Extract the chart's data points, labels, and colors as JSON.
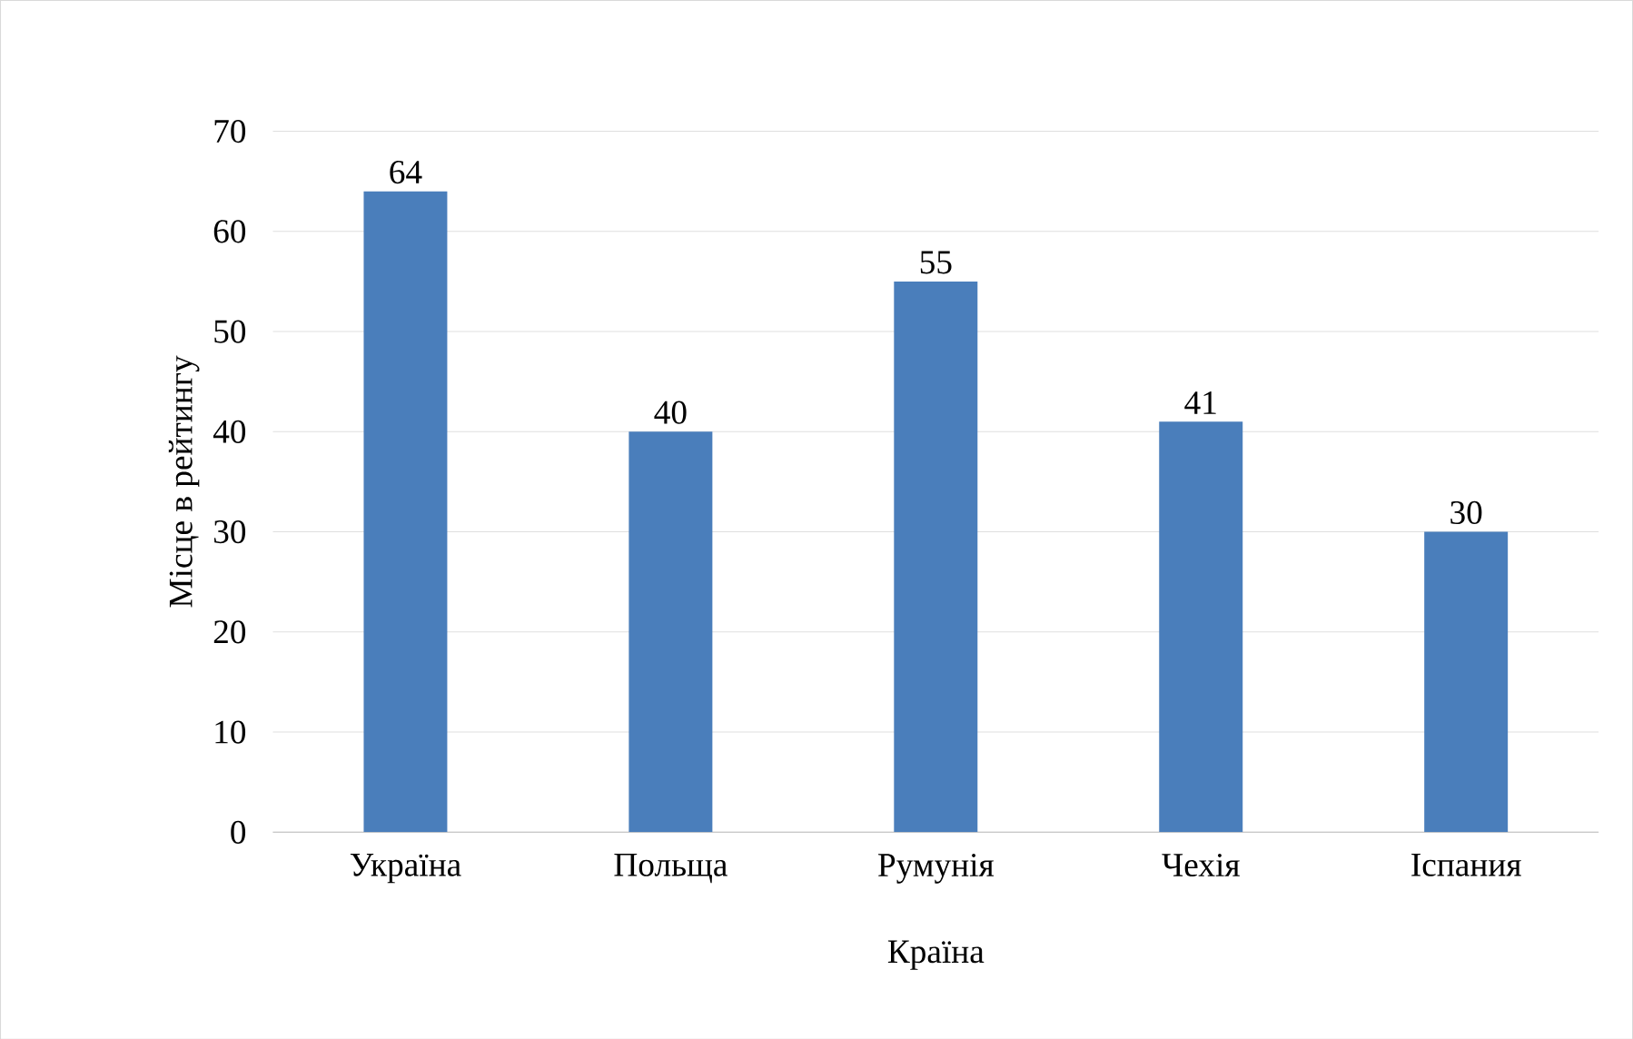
{
  "chart_data": {
    "type": "bar",
    "xlabel": "Країна",
    "ylabel": "Місце в рейтингу",
    "categories": [
      "Україна",
      "Польща",
      "Румунія",
      "Чехія",
      "Іспания"
    ],
    "values": [
      64,
      40,
      55,
      41,
      30
    ],
    "color": "#4a7ebb",
    "ylim": [
      0,
      70
    ],
    "yticks": [
      0,
      10,
      20,
      30,
      40,
      50,
      60,
      70
    ],
    "grid": "y",
    "data_labels": true
  }
}
